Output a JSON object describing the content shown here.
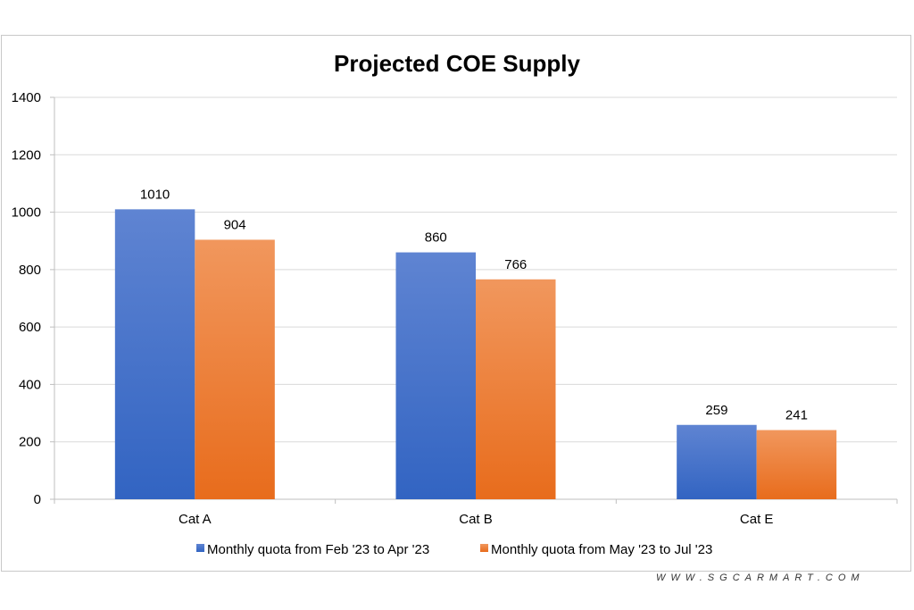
{
  "chart_data": {
    "type": "bar",
    "title": "Projected COE Supply",
    "categories": [
      "Cat A",
      "Cat B",
      "Cat E"
    ],
    "series": [
      {
        "name": "Monthly quota from Feb '23 to Apr '23",
        "values": [
          1010,
          860,
          259
        ],
        "color": "#4472c4"
      },
      {
        "name": "Monthly quota from May '23 to Jul '23",
        "values": [
          904,
          766,
          241
        ],
        "color": "#ed7d31"
      }
    ],
    "ylim": [
      0,
      1400
    ],
    "yticks": [
      0,
      200,
      400,
      600,
      800,
      1000,
      1200,
      1400
    ],
    "grid": true,
    "legend": "bottom",
    "xlabel": "",
    "ylabel": ""
  },
  "watermark": "WWW.SGCARMART.COM"
}
